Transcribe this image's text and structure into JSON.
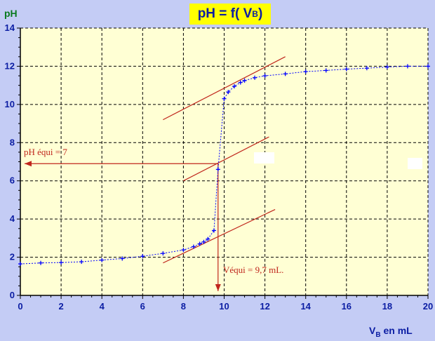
{
  "chart_data": {
    "type": "scatter",
    "title": {
      "main": "pH = f( V",
      "sub": "B",
      "end": ")"
    },
    "ylabel": "pH",
    "xlabel": {
      "main": "V",
      "sub": "B",
      "rest": " en mL"
    },
    "xlim": [
      0,
      20
    ],
    "ylim": [
      0,
      14
    ],
    "x_ticks": [
      0,
      2,
      4,
      6,
      8,
      10,
      12,
      14,
      16,
      18,
      20
    ],
    "y_ticks": [
      0,
      2,
      4,
      6,
      8,
      10,
      12,
      14
    ],
    "grid": true,
    "series": [
      {
        "x": [
          0,
          1,
          2,
          3,
          4,
          5,
          6,
          7,
          8,
          8.5,
          8.8,
          9.0,
          9.2,
          9.5,
          9.7,
          10.0,
          10.2,
          10.5,
          10.8,
          11.0,
          11.5,
          12.0,
          13.0,
          14.0,
          15.0,
          16.0,
          17.0,
          18.0,
          19.0,
          20.0
        ],
        "y": [
          1.65,
          1.7,
          1.72,
          1.76,
          1.85,
          1.93,
          2.05,
          2.2,
          2.38,
          2.55,
          2.7,
          2.8,
          2.95,
          3.4,
          6.6,
          10.3,
          10.65,
          10.95,
          11.15,
          11.25,
          11.4,
          11.5,
          11.6,
          11.72,
          11.78,
          11.85,
          11.9,
          11.96,
          12.0,
          12.0
        ],
        "color": "#0000ff"
      }
    ],
    "tangent_lines": [
      {
        "x": [
          7.0,
          12.5
        ],
        "y": [
          1.7,
          4.5
        ]
      },
      {
        "x": [
          8.0,
          12.2
        ],
        "y": [
          6.0,
          8.3
        ]
      },
      {
        "x": [
          7.0,
          13.0
        ],
        "y": [
          9.2,
          12.5
        ]
      }
    ],
    "annotations": {
      "ph_equi": "pH équi = 7",
      "v_equi": "Véqui = 9,7 mL."
    },
    "equivalence": {
      "x": 9.7,
      "y": 6.9
    },
    "colors": {
      "background": "#c4ccf5",
      "plot_area": "#ffffd4",
      "points": "#0000ff",
      "tangents": "#c0261c",
      "axis_text": "#0b1da3",
      "ylabel": "#0a7a1f"
    }
  }
}
